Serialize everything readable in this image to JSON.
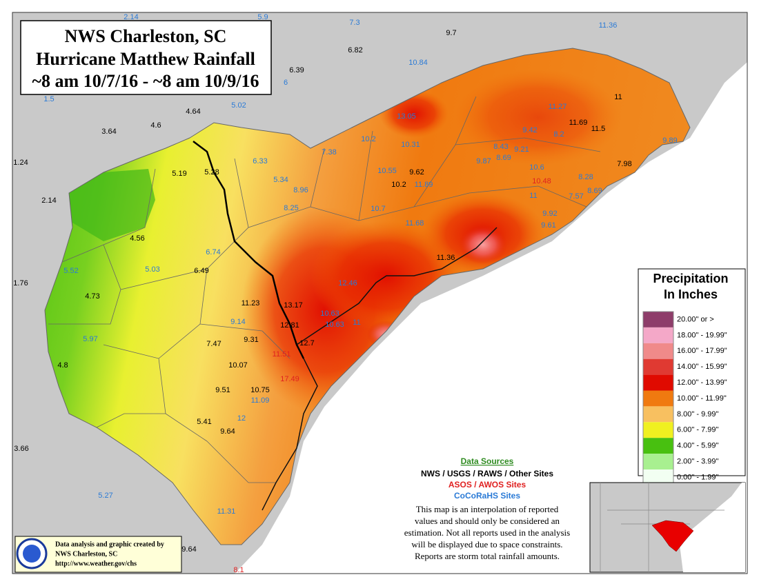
{
  "title": {
    "lines": [
      "NWS Charleston, SC",
      "Hurricane Matthew Rainfall",
      "~8 am 10/7/16 - ~8 am 10/9/16"
    ]
  },
  "legend": {
    "title": [
      "Precipitation",
      "In Inches"
    ],
    "entries": [
      {
        "label": "20.00\" or >",
        "color": "#8e3d6a"
      },
      {
        "label": "18.00\" - 19.99\"",
        "color": "#f4a8c8"
      },
      {
        "label": "16.00\" - 17.99\"",
        "color": "#f08a8a"
      },
      {
        "label": "14.00\" - 15.99\"",
        "color": "#e03a32"
      },
      {
        "label": "12.00\" - 13.99\"",
        "color": "#e00a00"
      },
      {
        "label": "10.00\" - 11.99\"",
        "color": "#f07a10"
      },
      {
        "label": "8.00\" - 9.99\"",
        "color": "#f8c060"
      },
      {
        "label": "6.00\" - 7.99\"",
        "color": "#f0f020"
      },
      {
        "label": "4.00\" - 5.99\"",
        "color": "#48c010"
      },
      {
        "label": "2.00\" - 3.99\"",
        "color": "#a8f090"
      },
      {
        "label": "0.00\" - 1.99\"",
        "color": "#f2fff2"
      }
    ]
  },
  "data_sources": {
    "heading": "Data Sources",
    "networks": [
      {
        "label": "NWS / USGS / RAWS / Other Sites",
        "color": "#000000"
      },
      {
        "label": "ASOS / AWOS Sites",
        "color": "#e02020"
      },
      {
        "label": "CoCoRaHS Sites",
        "color": "#2a7ad6"
      }
    ],
    "note": [
      "This map is an interpolation of reported",
      "values and should only be considered an",
      "estimation. Not all reports used in the analysis",
      "will be displayed due to space constraints.",
      "Reports are storm total rainfall amounts."
    ]
  },
  "credit": [
    "Data analysis and graphic created by",
    "NWS Charleston, SC",
    "http://www.weather.gov/chs"
  ],
  "stations": [
    {
      "value": 2.14,
      "color": "#2a7ad6"
    },
    {
      "value": 5.9,
      "color": "#2a7ad6"
    },
    {
      "value": 7.3,
      "color": "#2a7ad6"
    },
    {
      "value": 9.7,
      "color": "#000000"
    },
    {
      "value": 11.36,
      "color": "#2a7ad6"
    },
    {
      "value": 6.82,
      "color": "#000000"
    },
    {
      "value": 10.84,
      "color": "#2a7ad6"
    },
    {
      "value": 6.39,
      "color": "#000000"
    },
    {
      "value": 6,
      "color": "#2a7ad6"
    },
    {
      "value": 1.5,
      "color": "#2a7ad6"
    },
    {
      "value": 5.02,
      "color": "#2a7ad6"
    },
    {
      "value": 4.64,
      "color": "#000000"
    },
    {
      "value": 4.6,
      "color": "#000000"
    },
    {
      "value": 3.64,
      "color": "#000000"
    },
    {
      "value": 13.05,
      "color": "#2a7ad6"
    },
    {
      "value": 11.27,
      "color": "#2a7ad6"
    },
    {
      "value": 11,
      "color": "#000000"
    },
    {
      "value": 11.69,
      "color": "#000000"
    },
    {
      "value": 11.5,
      "color": "#000000"
    },
    {
      "value": 9.42,
      "color": "#2a7ad6"
    },
    {
      "value": 8.2,
      "color": "#2a7ad6"
    },
    {
      "value": 10.2,
      "color": "#2a7ad6"
    },
    {
      "value": 10.31,
      "color": "#2a7ad6"
    },
    {
      "value": 8.43,
      "color": "#2a7ad6"
    },
    {
      "value": 9.21,
      "color": "#2a7ad6"
    },
    {
      "value": 8.69,
      "color": "#2a7ad6"
    },
    {
      "value": 9.89,
      "color": "#2a7ad6"
    },
    {
      "value": 7.38,
      "color": "#2a7ad6"
    },
    {
      "value": 6.33,
      "color": "#2a7ad6"
    },
    {
      "value": 1.24,
      "color": "#000000"
    },
    {
      "value": 5.19,
      "color": "#000000"
    },
    {
      "value": 5.28,
      "color": "#000000"
    },
    {
      "value": 10.55,
      "color": "#2a7ad6"
    },
    {
      "value": 9.62,
      "color": "#000000"
    },
    {
      "value": 9.87,
      "color": "#2a7ad6"
    },
    {
      "value": 10.6,
      "color": "#2a7ad6"
    },
    {
      "value": 7.98,
      "color": "#000000"
    },
    {
      "value": 5.34,
      "color": "#2a7ad6"
    },
    {
      "value": 8.96,
      "color": "#2a7ad6"
    },
    {
      "value": 10.2,
      "color": "#000000"
    },
    {
      "value": 11.89,
      "color": "#2a7ad6"
    },
    {
      "value": 10.48,
      "color": "#e02020"
    },
    {
      "value": 8.28,
      "color": "#2a7ad6"
    },
    {
      "value": 8.69,
      "color": "#2a7ad6"
    },
    {
      "value": 2.14,
      "color": "#000000"
    },
    {
      "value": 11,
      "color": "#2a7ad6"
    },
    {
      "value": 7.57,
      "color": "#2a7ad6"
    },
    {
      "value": 8.25,
      "color": "#2a7ad6"
    },
    {
      "value": 10.7,
      "color": "#2a7ad6"
    },
    {
      "value": 9.92,
      "color": "#2a7ad6"
    },
    {
      "value": 11.68,
      "color": "#2a7ad6"
    },
    {
      "value": 9.61,
      "color": "#2a7ad6"
    },
    {
      "value": 4.56,
      "color": "#000000"
    },
    {
      "value": 6.74,
      "color": "#2a7ad6"
    },
    {
      "value": 11.36,
      "color": "#000000"
    },
    {
      "value": 5.52,
      "color": "#2a7ad6"
    },
    {
      "value": 5.03,
      "color": "#2a7ad6"
    },
    {
      "value": 6.49,
      "color": "#000000"
    },
    {
      "value": 1.76,
      "color": "#000000"
    },
    {
      "value": 12.46,
      "color": "#2a7ad6"
    },
    {
      "value": 4.73,
      "color": "#000000"
    },
    {
      "value": 11.23,
      "color": "#000000"
    },
    {
      "value": 13.17,
      "color": "#000000"
    },
    {
      "value": 10.63,
      "color": "#2a7ad6"
    },
    {
      "value": 10.63,
      "color": "#2a7ad6"
    },
    {
      "value": 11,
      "color": "#2a7ad6"
    },
    {
      "value": 9.14,
      "color": "#2a7ad6"
    },
    {
      "value": 12.81,
      "color": "#000000"
    },
    {
      "value": 5.97,
      "color": "#2a7ad6"
    },
    {
      "value": 9.31,
      "color": "#000000"
    },
    {
      "value": 7.47,
      "color": "#000000"
    },
    {
      "value": 12.7,
      "color": "#000000"
    },
    {
      "value": 4.8,
      "color": "#000000"
    },
    {
      "value": 10.07,
      "color": "#000000"
    },
    {
      "value": 11.51,
      "color": "#e02020"
    },
    {
      "value": 17.49,
      "color": "#e02020"
    },
    {
      "value": 9.51,
      "color": "#000000"
    },
    {
      "value": 10.75,
      "color": "#000000"
    },
    {
      "value": 11.09,
      "color": "#2a7ad6"
    },
    {
      "value": 12,
      "color": "#2a7ad6"
    },
    {
      "value": 5.41,
      "color": "#000000"
    },
    {
      "value": 9.64,
      "color": "#000000"
    },
    {
      "value": 3.66,
      "color": "#000000"
    },
    {
      "value": 5.27,
      "color": "#2a7ad6"
    },
    {
      "value": 11.31,
      "color": "#2a7ad6"
    },
    {
      "value": 9.64,
      "color": "#000000"
    },
    {
      "value": 8.1,
      "color": "#e02020"
    }
  ]
}
